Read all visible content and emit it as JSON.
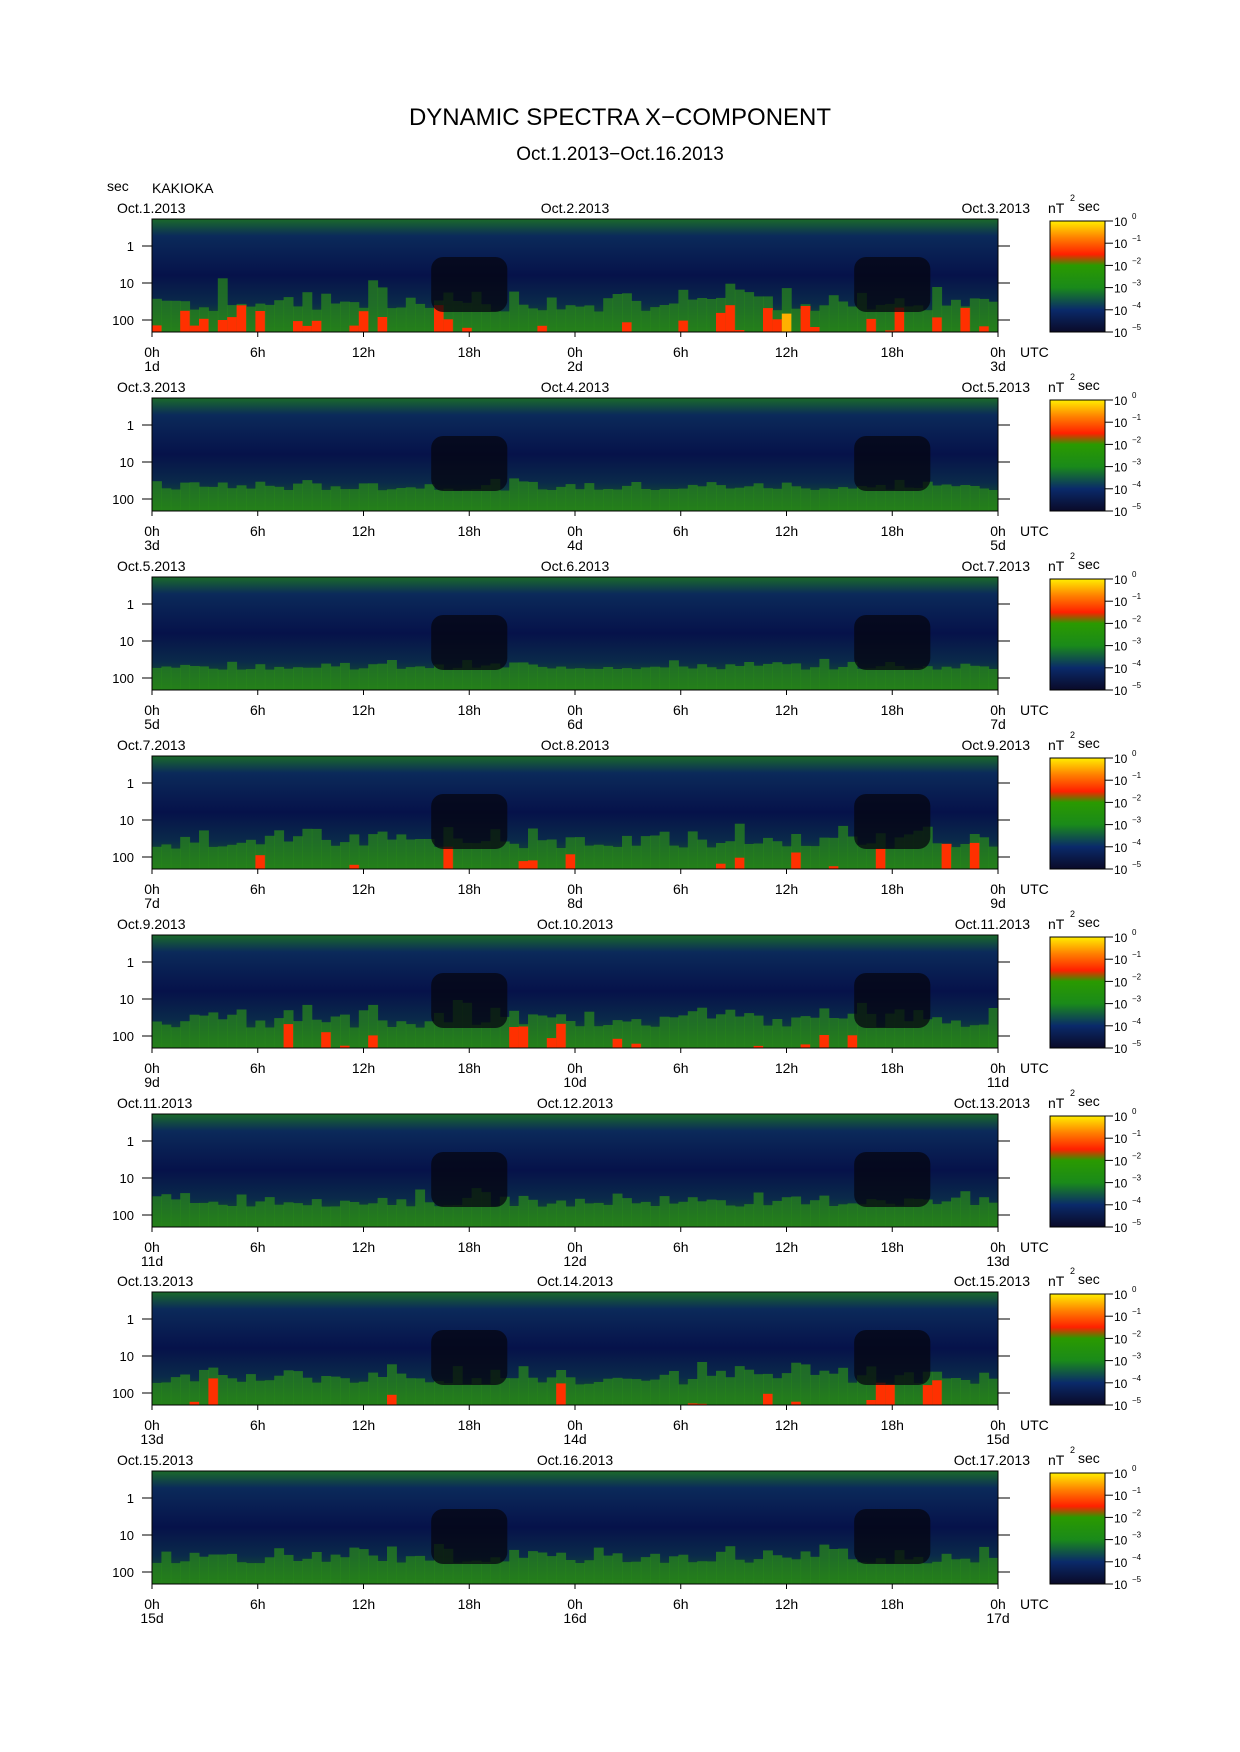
{
  "title": "DYNAMIC SPECTRA X−COMPONENT",
  "subtitle": "Oct.1.2013−Oct.16.2013",
  "y_unit": "sec",
  "station": "KAKIOKA",
  "colorbar_unit": "nT",
  "colorbar_unit_sup": "2",
  "colorbar_unit_tail": "sec",
  "colorbar_ticks": [
    "10",
    "10",
    "10",
    "10",
    "10",
    "10"
  ],
  "colorbar_exps": [
    "0",
    "−1",
    "−2",
    "−3",
    "−4",
    "−5"
  ],
  "utc": "UTC",
  "chart_data": {
    "type": "heatmap",
    "y_ticks": [
      "1",
      "10",
      "100"
    ],
    "x_ticks": [
      "0h",
      "6h",
      "12h",
      "18h",
      "0h",
      "6h",
      "12h",
      "18h",
      "0h"
    ],
    "panels": [
      {
        "left": "Oct.1.2013",
        "mid": "Oct.2.2013",
        "right": "Oct.3.2013",
        "days": [
          "1d",
          "2d",
          "3d"
        ],
        "activity": 0.65
      },
      {
        "left": "Oct.3.2013",
        "mid": "Oct.4.2013",
        "right": "Oct.5.2013",
        "days": [
          "3d",
          "4d",
          "5d"
        ],
        "activity": 0.25
      },
      {
        "left": "Oct.5.2013",
        "mid": "Oct.6.2013",
        "right": "Oct.7.2013",
        "days": [
          "5d",
          "6d",
          "7d"
        ],
        "activity": 0.2
      },
      {
        "left": "Oct.7.2013",
        "mid": "Oct.8.2013",
        "right": "Oct.9.2013",
        "days": [
          "7d",
          "8d",
          "9d"
        ],
        "activity": 0.5
      },
      {
        "left": "Oct.9.2013",
        "mid": "Oct.10.2013",
        "right": "Oct.11.2013",
        "days": [
          "9d",
          "10d",
          "11d"
        ],
        "activity": 0.55
      },
      {
        "left": "Oct.11.2013",
        "mid": "Oct.12.2013",
        "right": "Oct.13.2013",
        "days": [
          "11d",
          "12d",
          "13d"
        ],
        "activity": 0.35
      },
      {
        "left": "Oct.13.2013",
        "mid": "Oct.14.2013",
        "right": "Oct.15.2013",
        "days": [
          "13d",
          "14d",
          "15d"
        ],
        "activity": 0.5
      },
      {
        "left": "Oct.15.2013",
        "mid": "Oct.16.2013",
        "right": "Oct.17.2013",
        "days": [
          "15d",
          "16d",
          "17d"
        ],
        "activity": 0.4
      }
    ]
  }
}
